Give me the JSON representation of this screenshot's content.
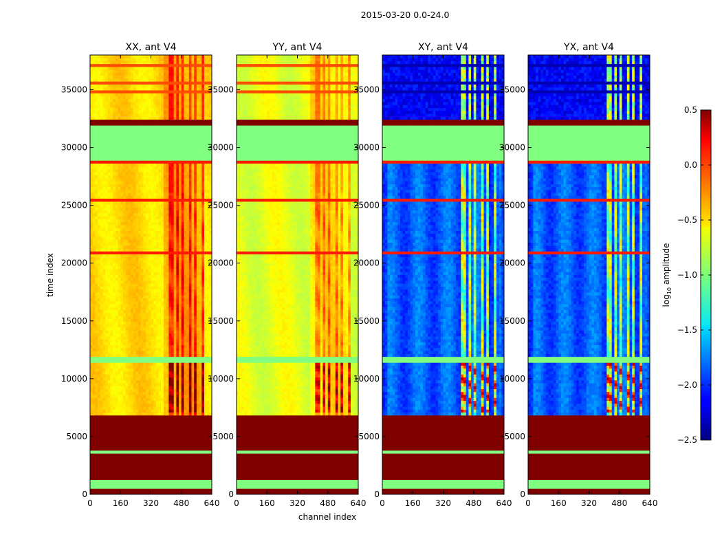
{
  "chart_data": {
    "type": "heatmap",
    "suptitle": "2015-03-20 0.0-24.0",
    "xlabel": "channel index",
    "ylabel": "time index",
    "xlim": [
      0,
      640
    ],
    "ylim": [
      0,
      38000
    ],
    "x_ticks": [
      "0",
      "160",
      "320",
      "480",
      "640"
    ],
    "y_ticks": [
      "0",
      "5000",
      "10000",
      "15000",
      "20000",
      "25000",
      "30000",
      "35000"
    ],
    "panels": [
      {
        "title": "XX, ant V4",
        "kind": "parallel"
      },
      {
        "title": "YY, ant V4",
        "kind": "parallel"
      },
      {
        "title": "XY, ant V4",
        "kind": "cross"
      },
      {
        "title": "YX, ant V4",
        "kind": "cross"
      }
    ],
    "colorbar": {
      "label_main": "log",
      "label_sub": "10",
      "label_rest": " amplitude",
      "range": [
        -2.5,
        0.5
      ],
      "ticks": [
        "0.5",
        "0.0",
        "−0.5",
        "−1.0",
        "−1.5",
        "−2.0",
        "−2.5"
      ],
      "colormap": "jet"
    },
    "segments": {
      "flagged_saturated": [
        [
          0,
          600
        ],
        [
          1200,
          1800
        ],
        [
          1900,
          3500
        ],
        [
          3850,
          6800
        ],
        [
          31900,
          32400
        ]
      ],
      "constant_mid": [
        [
          600,
          1200
        ],
        [
          3500,
          3850
        ],
        [
          11300,
          11900
        ],
        [
          28800,
          31900
        ]
      ],
      "data": [
        [
          6800,
          11300
        ],
        [
          11900,
          28800
        ],
        [
          32400,
          38000
        ]
      ]
    }
  },
  "colors": {
    "axes": "#000000",
    "background": "#ffffff"
  }
}
